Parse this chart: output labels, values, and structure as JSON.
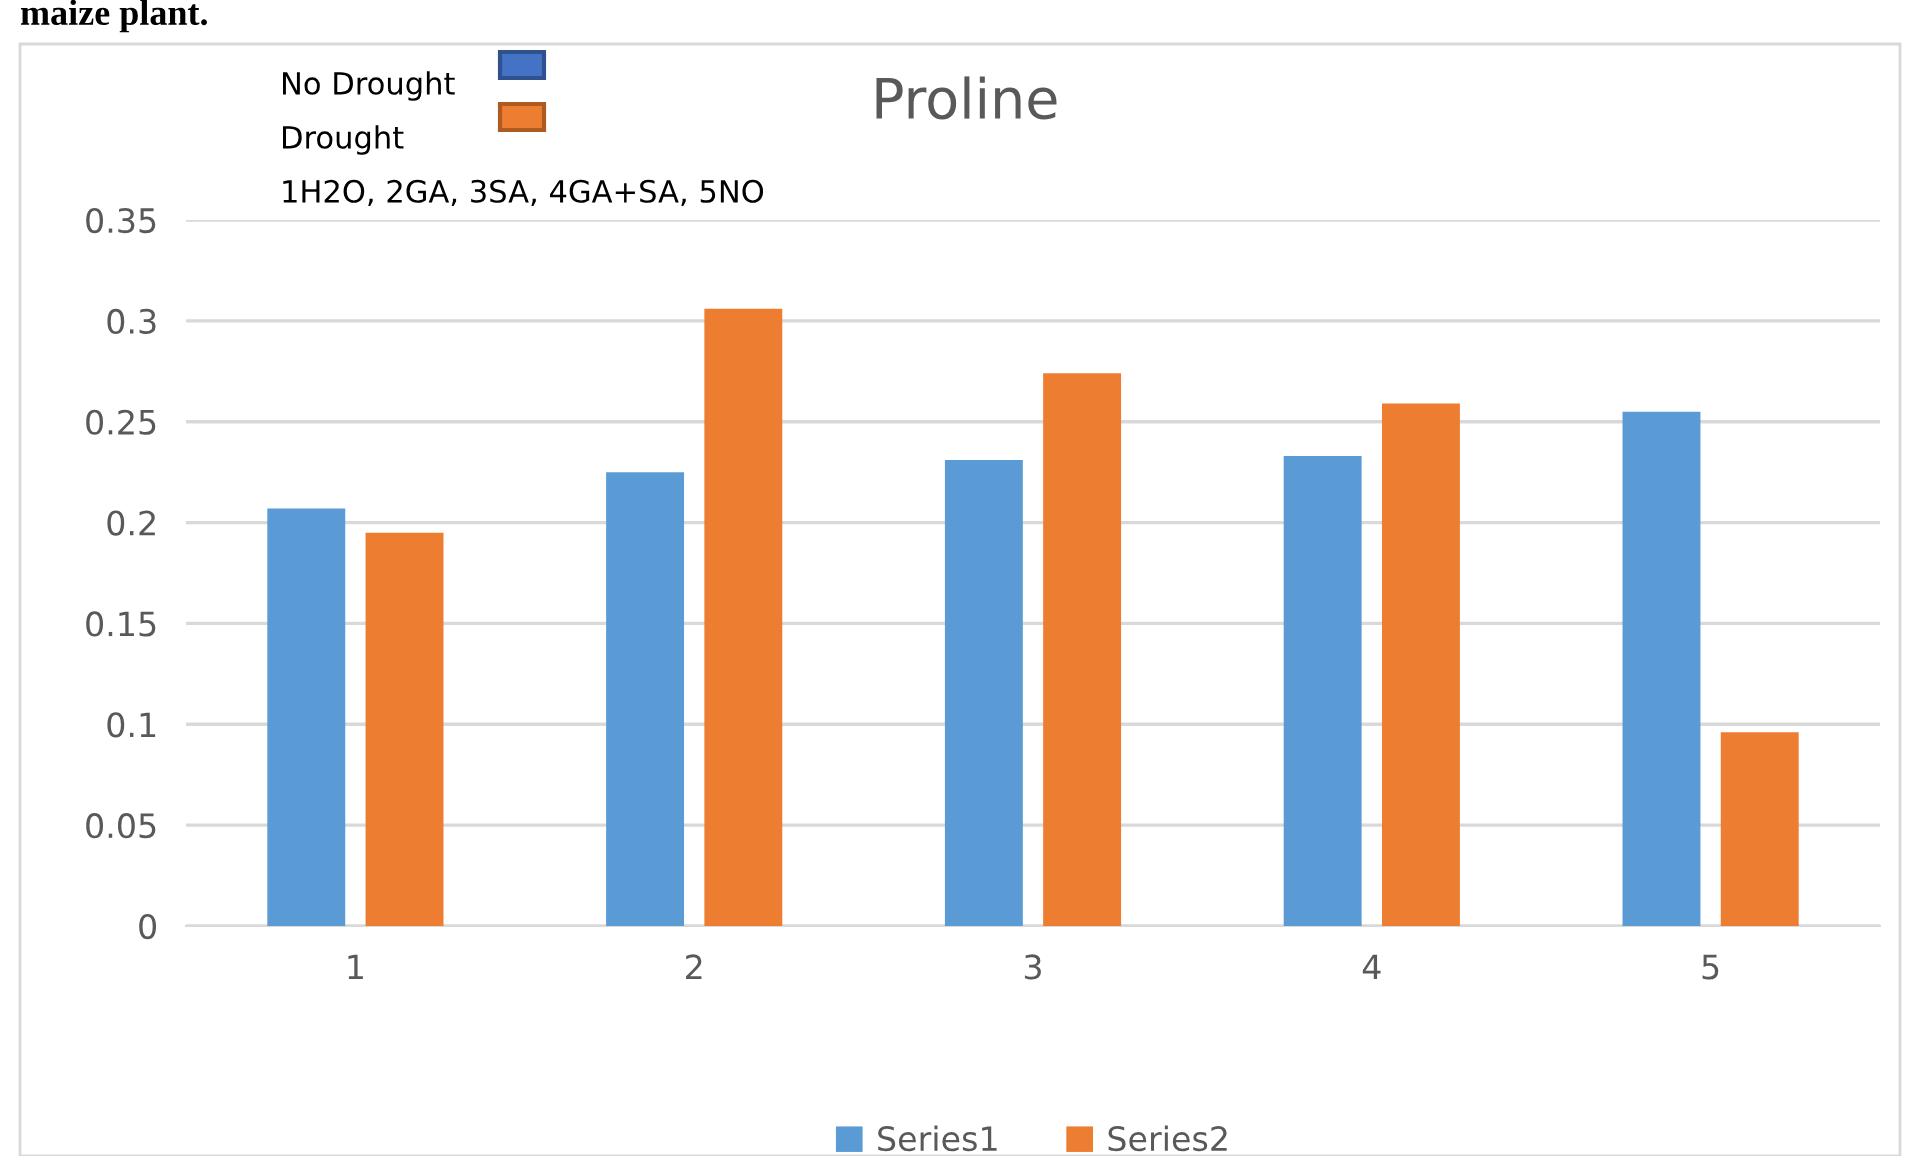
{
  "chart_data": {
    "type": "bar",
    "title": "Proline",
    "categories": [
      "1",
      "2",
      "3",
      "4",
      "5"
    ],
    "series": [
      {
        "name": "Series1",
        "color": "#5b9bd5",
        "values": [
          0.207,
          0.225,
          0.231,
          0.233,
          0.255
        ]
      },
      {
        "name": "Series2",
        "color": "#ed7d31",
        "values": [
          0.195,
          0.306,
          0.274,
          0.259,
          0.096
        ]
      }
    ],
    "ylim": [
      0,
      0.35
    ],
    "yticks": [
      0,
      0.05,
      0.1,
      0.15,
      0.2,
      0.25,
      0.3,
      0.35
    ],
    "grid": "y",
    "legend": "bottom",
    "annotations": [
      "maize plant.",
      "No Drought",
      "Drought",
      "1H2O, 2GA, 3SA, 4GA+SA, 5NO"
    ]
  }
}
